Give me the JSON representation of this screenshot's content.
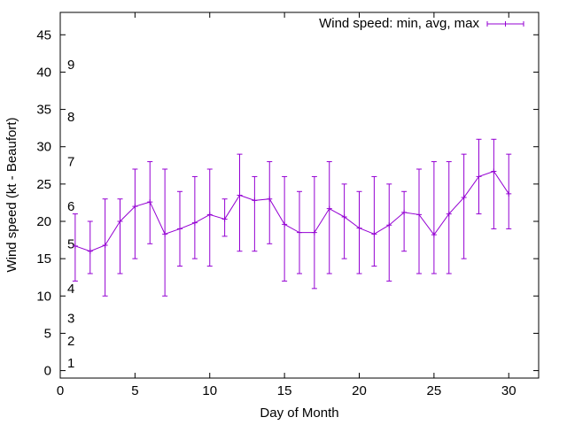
{
  "chart_data": {
    "type": "errorbar-line",
    "xlabel": "Day of Month",
    "ylabel": "Wind speed (kt - Beaufort)",
    "xlim": [
      0,
      32
    ],
    "ylim": [
      -1,
      48
    ],
    "xticks": [
      0,
      5,
      10,
      15,
      20,
      25,
      30
    ],
    "yticks": [
      0,
      5,
      10,
      15,
      20,
      25,
      30,
      35,
      40,
      45
    ],
    "grid": false,
    "legend_position": "top-right",
    "colors": {
      "series": "#9400d3",
      "axis": "#000000"
    },
    "series": [
      {
        "name": "Wind speed: min, avg, max",
        "points": [
          {
            "x": 1,
            "min": 12,
            "avg": 16.7,
            "max": 21
          },
          {
            "x": 2,
            "min": 13,
            "avg": 16.0,
            "max": 20
          },
          {
            "x": 3,
            "min": 10,
            "avg": 16.8,
            "max": 23
          },
          {
            "x": 4,
            "min": 13,
            "avg": 20.0,
            "max": 23
          },
          {
            "x": 5,
            "min": 15,
            "avg": 22.0,
            "max": 27
          },
          {
            "x": 6,
            "min": 17,
            "avg": 22.6,
            "max": 28
          },
          {
            "x": 7,
            "min": 10,
            "avg": 18.3,
            "max": 27
          },
          {
            "x": 8,
            "min": 14,
            "avg": 19.0,
            "max": 24
          },
          {
            "x": 9,
            "min": 15,
            "avg": 19.8,
            "max": 26
          },
          {
            "x": 10,
            "min": 14,
            "avg": 20.9,
            "max": 27
          },
          {
            "x": 11,
            "min": 18,
            "avg": 20.3,
            "max": 23
          },
          {
            "x": 12,
            "min": 16,
            "avg": 23.5,
            "max": 29
          },
          {
            "x": 13,
            "min": 16,
            "avg": 22.8,
            "max": 26
          },
          {
            "x": 14,
            "min": 17,
            "avg": 23.0,
            "max": 28
          },
          {
            "x": 15,
            "min": 12,
            "avg": 19.6,
            "max": 26
          },
          {
            "x": 16,
            "min": 13,
            "avg": 18.5,
            "max": 24
          },
          {
            "x": 17,
            "min": 11,
            "avg": 18.5,
            "max": 26
          },
          {
            "x": 18,
            "min": 13,
            "avg": 21.7,
            "max": 28
          },
          {
            "x": 19,
            "min": 15,
            "avg": 20.6,
            "max": 25
          },
          {
            "x": 20,
            "min": 13,
            "avg": 19.1,
            "max": 24
          },
          {
            "x": 21,
            "min": 14,
            "avg": 18.3,
            "max": 26
          },
          {
            "x": 22,
            "min": 12,
            "avg": 19.5,
            "max": 25
          },
          {
            "x": 23,
            "min": 16,
            "avg": 21.2,
            "max": 24
          },
          {
            "x": 24,
            "min": 13,
            "avg": 20.9,
            "max": 27
          },
          {
            "x": 25,
            "min": 13,
            "avg": 18.2,
            "max": 28
          },
          {
            "x": 26,
            "min": 13,
            "avg": 21.0,
            "max": 28
          },
          {
            "x": 27,
            "min": 15,
            "avg": 23.2,
            "max": 29
          },
          {
            "x": 28,
            "min": 21,
            "avg": 26.0,
            "max": 31
          },
          {
            "x": 29,
            "min": 19,
            "avg": 26.7,
            "max": 31
          },
          {
            "x": 30,
            "min": 19,
            "avg": 23.7,
            "max": 29
          }
        ]
      }
    ],
    "beaufort_labels": [
      {
        "text": "1",
        "y": 1
      },
      {
        "text": "2",
        "y": 4
      },
      {
        "text": "3",
        "y": 7
      },
      {
        "text": "4",
        "y": 11
      },
      {
        "text": "5",
        "y": 17
      },
      {
        "text": "6",
        "y": 22
      },
      {
        "text": "7",
        "y": 28
      },
      {
        "text": "8",
        "y": 34
      },
      {
        "text": "9",
        "y": 41
      }
    ]
  }
}
